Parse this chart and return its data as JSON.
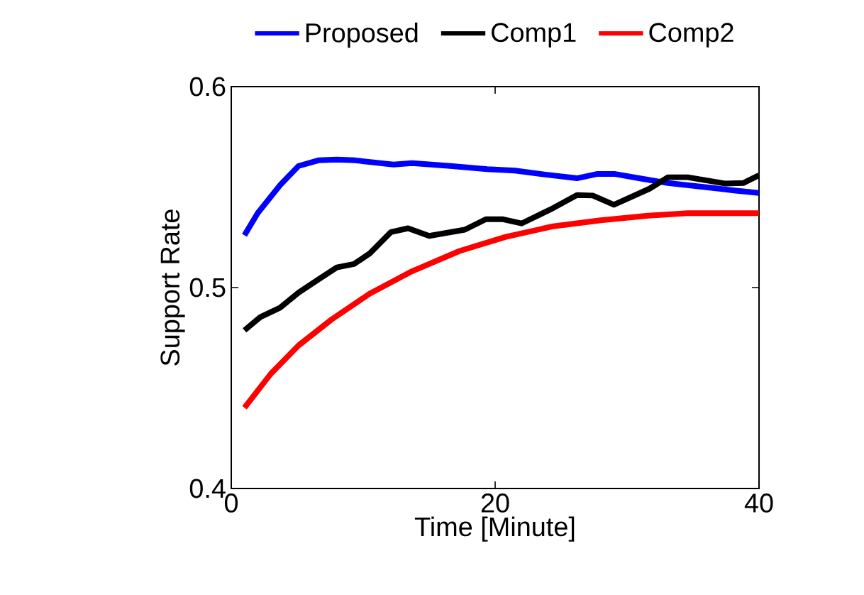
{
  "chart_data": {
    "type": "line",
    "xlabel": "Time [Minute]",
    "ylabel": "Support Rate",
    "xlim": [
      0,
      40
    ],
    "xticks": [
      0,
      20,
      40
    ],
    "ylim": [
      0.4,
      0.6
    ],
    "yticks": [
      0.4,
      0.5,
      0.6
    ],
    "legend": "top",
    "marker": "none",
    "line_style": "solid",
    "series": [
      {
        "name": "Proposed",
        "color": "#0000ff",
        "x": [
          1,
          2,
          3.7,
          5.1,
          6.6,
          8.0,
          9.4,
          12.3,
          13.7,
          16.6,
          19.4,
          21.5,
          23.7,
          26.2,
          27.7,
          29.1,
          30.9,
          33.1,
          35.9,
          38.1,
          40
        ],
        "values": [
          0.526,
          0.537,
          0.551,
          0.5605,
          0.5633,
          0.5637,
          0.5633,
          0.5612,
          0.5619,
          0.5605,
          0.5589,
          0.5582,
          0.5563,
          0.5544,
          0.5565,
          0.5565,
          0.5544,
          0.552,
          0.55,
          0.5483,
          0.5471
        ]
      },
      {
        "name": "Comp1",
        "color": "#000000",
        "x": [
          1,
          2.2,
          3.7,
          5.1,
          6.6,
          8.0,
          9.3,
          10.5,
          12.1,
          13.4,
          15,
          17.7,
          19.3,
          20.6,
          22,
          24.2,
          26.2,
          27.4,
          29.0,
          31.7,
          33.1,
          34.6,
          37.4,
          38.8,
          40
        ],
        "values": [
          0.4787,
          0.4853,
          0.49,
          0.4975,
          0.504,
          0.51,
          0.5117,
          0.517,
          0.5276,
          0.5295,
          0.5257,
          0.5288,
          0.534,
          0.534,
          0.5319,
          0.5389,
          0.546,
          0.5458,
          0.5412,
          0.5492,
          0.5549,
          0.5549,
          0.5518,
          0.552,
          0.5559
        ]
      },
      {
        "name": "Comp2",
        "color": "#ff0000",
        "x": [
          1,
          3,
          5.1,
          7.6,
          10.5,
          13.7,
          17.3,
          20.8,
          24.4,
          28,
          31.6,
          34.6,
          40
        ],
        "values": [
          0.4402,
          0.4571,
          0.4712,
          0.4841,
          0.497,
          0.5081,
          0.5182,
          0.5252,
          0.5305,
          0.5335,
          0.5358,
          0.537,
          0.537
        ]
      }
    ]
  }
}
